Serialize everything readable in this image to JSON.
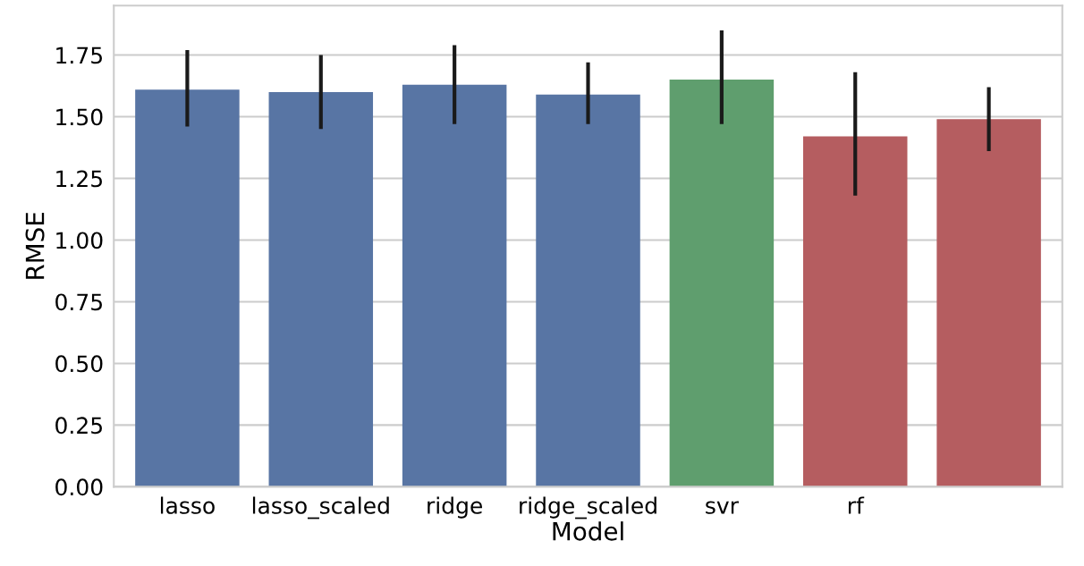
{
  "chart_data": {
    "type": "bar",
    "xlabel": "Model",
    "ylabel": "RMSE",
    "categories": [
      "lasso",
      "lasso_scaled",
      "ridge",
      "ridge_scaled",
      "svr",
      "rf",
      null
    ],
    "values": [
      1.61,
      1.6,
      1.63,
      1.59,
      1.65,
      1.42,
      1.49
    ],
    "colors": [
      "#5875a4",
      "#5875a4",
      "#5875a4",
      "#5875a4",
      "#5f9e6e",
      "#b55d60",
      "#b55d60"
    ],
    "errors": [
      [
        1.46,
        1.77
      ],
      [
        1.45,
        1.75
      ],
      [
        1.47,
        1.79
      ],
      [
        1.47,
        1.72
      ],
      [
        1.47,
        1.85
      ],
      [
        1.18,
        1.68
      ],
      [
        1.36,
        1.62
      ]
    ],
    "ylim": [
      0,
      1.95
    ],
    "yticks": [
      {
        "value": 0,
        "label": "0.00"
      },
      {
        "value": 0.25,
        "label": "0.25"
      },
      {
        "value": 0.5,
        "label": "0.50"
      },
      {
        "value": 0.75,
        "label": "0.75"
      },
      {
        "value": 1,
        "label": "1.00"
      },
      {
        "value": 1.25,
        "label": "1.25"
      },
      {
        "value": 1.5,
        "label": "1.50"
      },
      {
        "value": 1.75,
        "label": "1.75"
      }
    ],
    "grid": "y"
  }
}
